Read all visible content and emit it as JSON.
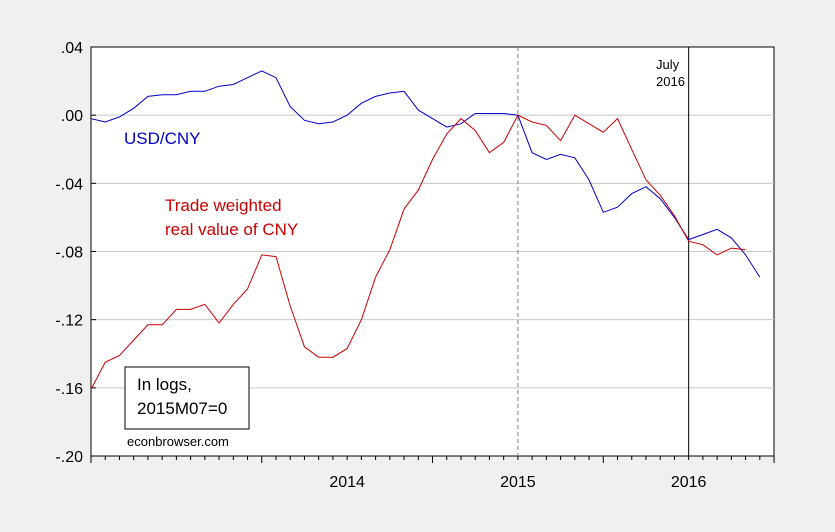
{
  "chart_data": {
    "type": "line",
    "x_axis": {
      "type": "monthly",
      "start": "2013M01",
      "end": "2016M12",
      "tick_labels": [
        "2014",
        "2015",
        "2016"
      ],
      "tick_positions": [
        "2014M01",
        "2015M01",
        "2016M01"
      ]
    },
    "y_axis": {
      "range": [
        -0.2,
        0.04
      ],
      "ticks": [
        0.04,
        0.0,
        -0.04,
        -0.08,
        -0.12,
        -0.16,
        -0.2
      ],
      "tick_labels": [
        ".04",
        ".00",
        "-.04",
        "-.08",
        "-.12",
        "-.16",
        "-.20"
      ]
    },
    "grid": true,
    "series": [
      {
        "name": "USD/CNY",
        "color": "#0000cc",
        "start": "2013M01",
        "values": [
          -0.002,
          -0.004,
          -0.001,
          0.004,
          0.011,
          0.012,
          0.012,
          0.014,
          0.014,
          0.017,
          0.018,
          0.022,
          0.026,
          0.022,
          0.005,
          -0.003,
          -0.005,
          -0.004,
          0.0,
          0.007,
          0.011,
          0.013,
          0.014,
          0.003,
          -0.002,
          -0.007,
          -0.005,
          0.001,
          0.001,
          0.001,
          0.0,
          -0.022,
          -0.026,
          -0.023,
          -0.025,
          -0.038,
          -0.057,
          -0.054,
          -0.046,
          -0.042,
          -0.049,
          -0.06,
          -0.073,
          -0.07,
          -0.067,
          -0.072,
          -0.082,
          -0.095
        ]
      },
      {
        "name": "Trade weighted real value of CNY",
        "color": "#cc0000",
        "start": "2013M01",
        "values": [
          -0.161,
          -0.145,
          -0.141,
          -0.132,
          -0.123,
          -0.123,
          -0.114,
          -0.114,
          -0.111,
          -0.122,
          -0.111,
          -0.102,
          -0.082,
          -0.083,
          -0.112,
          -0.136,
          -0.142,
          -0.142,
          -0.137,
          -0.12,
          -0.095,
          -0.079,
          -0.055,
          -0.044,
          -0.026,
          -0.011,
          -0.002,
          -0.009,
          -0.022,
          -0.016,
          0.0,
          -0.004,
          -0.006,
          -0.015,
          0.0,
          -0.005,
          -0.01,
          -0.002,
          -0.02,
          -0.038,
          -0.047,
          -0.059,
          -0.074,
          -0.076,
          -0.082,
          -0.078,
          -0.079
        ]
      }
    ],
    "annotations": {
      "usd_label": "USD/CNY",
      "tw_label_line1": "Trade weighted",
      "tw_label_line2": "real value of CNY",
      "note_line1": "In logs,",
      "note_line2": "2015M07=0",
      "source": "econbrowser.com",
      "vline_label_line1": "July",
      "vline_label_line2": "2016"
    },
    "vertical_lines": [
      {
        "date": "2015M07",
        "style": "dashed",
        "color": "#808080"
      },
      {
        "date": "2016M07",
        "style": "solid",
        "color": "#000000"
      }
    ]
  }
}
